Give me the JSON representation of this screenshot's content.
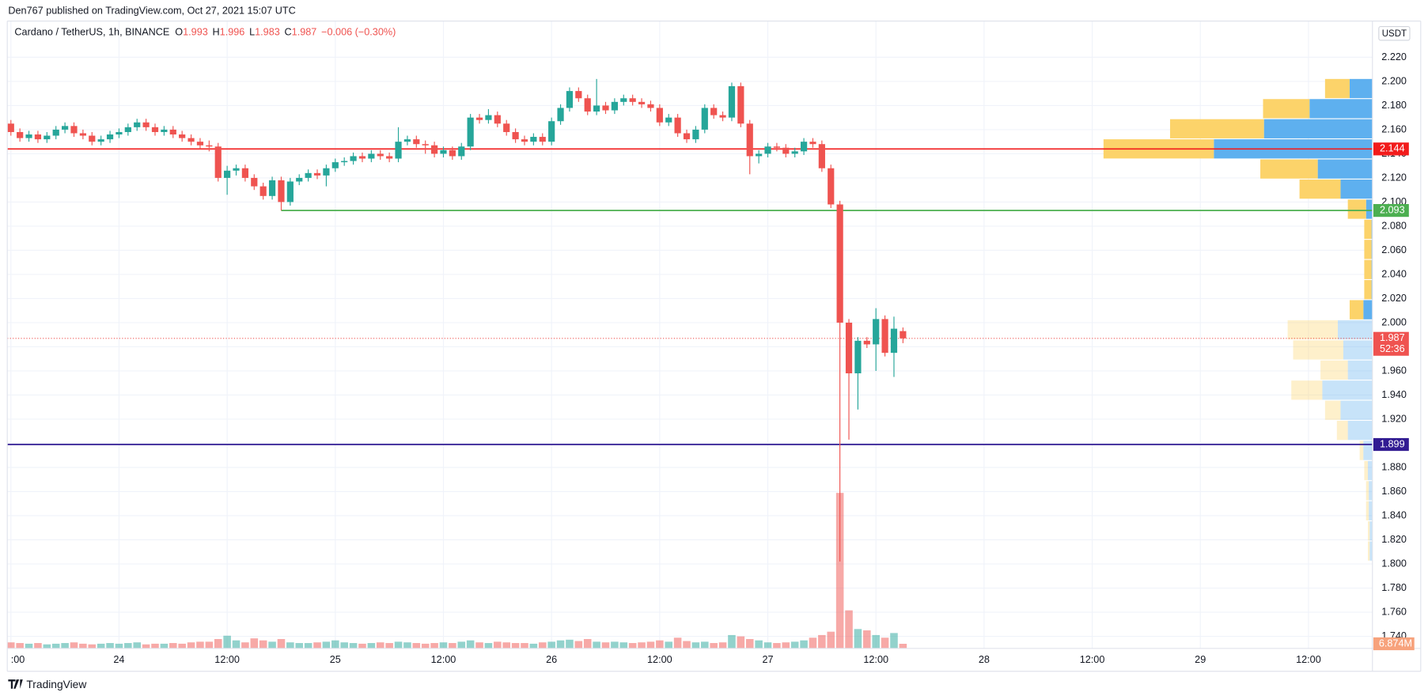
{
  "header": "Den767 published on TradingView.com, Oct 27, 2021 15:07 UTC",
  "footer": "TradingView",
  "chart_data": {
    "type": "candlestick",
    "legend": {
      "symbol": "Cardano / TetherUS, 1h, BINANCE",
      "labels": [
        "O",
        "H",
        "L",
        "C"
      ],
      "change": "−0.006 (−0.30%)"
    },
    "currency": "USDT",
    "countdown": "52:36",
    "up_color": "#26a69a",
    "down_color": "#ef5350",
    "grid": true,
    "xlim": [
      -0.4,
      151.1
    ],
    "xticks": [
      {
        "value": 0,
        "label": ":00"
      },
      {
        "value": 12,
        "label": "24"
      },
      {
        "value": 24,
        "label": "12:00"
      },
      {
        "value": 36,
        "label": "25"
      },
      {
        "value": 48,
        "label": "12:00"
      },
      {
        "value": 60,
        "label": "26"
      },
      {
        "value": 72,
        "label": "12:00"
      },
      {
        "value": 84,
        "label": "27"
      },
      {
        "value": 96,
        "label": "12:00"
      },
      {
        "value": 108,
        "label": "28"
      },
      {
        "value": 120,
        "label": "12:00"
      },
      {
        "value": 132,
        "label": "29"
      },
      {
        "value": 144,
        "label": "12:00"
      }
    ],
    "ylim": [
      1.73,
      2.25
    ],
    "yticks": [
      {
        "value": 1.74,
        "label": "1.740"
      },
      {
        "value": 1.76,
        "label": "1.760"
      },
      {
        "value": 1.78,
        "label": "1.780"
      },
      {
        "value": 1.8,
        "label": "1.800"
      },
      {
        "value": 1.82,
        "label": "1.820"
      },
      {
        "value": 1.84,
        "label": "1.840"
      },
      {
        "value": 1.86,
        "label": "1.860"
      },
      {
        "value": 1.88,
        "label": "1.880"
      },
      {
        "value": 1.9,
        "label": "1.900"
      },
      {
        "value": 1.92,
        "label": "1.920"
      },
      {
        "value": 1.94,
        "label": "1.940"
      },
      {
        "value": 1.96,
        "label": "1.960"
      },
      {
        "value": 1.98,
        "label": "1.980"
      },
      {
        "value": 2.0,
        "label": "2.000"
      },
      {
        "value": 2.02,
        "label": "2.020"
      },
      {
        "value": 2.04,
        "label": "2.040"
      },
      {
        "value": 2.06,
        "label": "2.060"
      },
      {
        "value": 2.08,
        "label": "2.080"
      },
      {
        "value": 2.1,
        "label": "2.100"
      },
      {
        "value": 2.12,
        "label": "2.120"
      },
      {
        "value": 2.14,
        "label": "2.140"
      },
      {
        "value": 2.16,
        "label": "2.160"
      },
      {
        "value": 2.18,
        "label": "2.180"
      },
      {
        "value": 2.2,
        "label": "2.200"
      },
      {
        "value": 2.22,
        "label": "2.220"
      }
    ],
    "open": [
      2.165,
      2.158,
      2.153,
      2.156,
      2.152,
      2.155,
      2.16,
      2.163,
      2.157,
      2.155,
      2.15,
      2.152,
      2.156,
      2.158,
      2.162,
      2.166,
      2.162,
      2.158,
      2.16,
      2.156,
      2.153,
      2.15,
      2.147,
      2.146,
      2.12,
      2.126,
      2.128,
      2.12,
      2.113,
      2.105,
      2.118,
      2.1,
      2.117,
      2.12,
      2.124,
      2.122,
      2.128,
      2.133,
      2.134,
      2.138,
      2.136,
      2.14,
      2.138,
      2.136,
      2.15,
      2.152,
      2.148,
      2.147,
      2.14,
      2.143,
      2.138,
      2.146,
      2.17,
      2.168,
      2.172,
      2.165,
      2.158,
      2.152,
      2.15,
      2.154,
      2.15,
      2.167,
      2.178,
      2.192,
      2.186,
      2.175,
      2.18,
      2.176,
      2.183,
      2.186,
      2.183,
      2.181,
      2.178,
      2.166,
      2.17,
      2.157,
      2.152,
      2.16,
      2.178,
      2.172,
      2.17,
      2.196,
      2.165,
      2.138,
      2.14,
      2.146,
      2.145,
      2.14,
      2.142,
      2.15,
      2.148,
      2.128,
      2.098,
      2.0,
      1.958,
      1.985,
      1.982,
      2.003,
      1.975,
      1.993
    ],
    "high": [
      2.168,
      2.161,
      2.159,
      2.159,
      2.158,
      2.163,
      2.166,
      2.166,
      2.16,
      2.158,
      2.155,
      2.159,
      2.161,
      2.165,
      2.169,
      2.169,
      2.165,
      2.163,
      2.163,
      2.159,
      2.156,
      2.153,
      2.151,
      2.149,
      2.13,
      2.131,
      2.131,
      2.123,
      2.116,
      2.121,
      2.121,
      2.12,
      2.123,
      2.127,
      2.127,
      2.131,
      2.136,
      2.137,
      2.141,
      2.141,
      2.143,
      2.143,
      2.141,
      2.162,
      2.155,
      2.155,
      2.151,
      2.15,
      2.146,
      2.146,
      2.149,
      2.173,
      2.173,
      2.177,
      2.175,
      2.168,
      2.161,
      2.155,
      2.157,
      2.157,
      2.17,
      2.181,
      2.195,
      2.195,
      2.189,
      2.202,
      2.183,
      2.186,
      2.189,
      2.189,
      2.186,
      2.184,
      2.181,
      2.173,
      2.173,
      2.16,
      2.163,
      2.181,
      2.181,
      2.175,
      2.199,
      2.199,
      2.168,
      2.143,
      2.149,
      2.149,
      2.148,
      2.145,
      2.153,
      2.153,
      2.151,
      2.131,
      2.101,
      2.003,
      1.988,
      1.988,
      2.012,
      2.006,
      2.005,
      1.996
    ],
    "low": [
      2.155,
      2.15,
      2.15,
      2.149,
      2.149,
      2.152,
      2.157,
      2.154,
      2.152,
      2.147,
      2.147,
      2.149,
      2.153,
      2.155,
      2.159,
      2.159,
      2.155,
      2.155,
      2.153,
      2.15,
      2.147,
      2.144,
      2.142,
      2.117,
      2.106,
      2.122,
      2.117,
      2.11,
      2.102,
      2.102,
      2.093,
      2.097,
      2.114,
      2.117,
      2.119,
      2.113,
      2.125,
      2.13,
      2.131,
      2.133,
      2.133,
      2.135,
      2.133,
      2.133,
      2.147,
      2.145,
      2.14,
      2.137,
      2.137,
      2.135,
      2.135,
      2.143,
      2.165,
      2.165,
      2.162,
      2.155,
      2.149,
      2.147,
      2.147,
      2.147,
      2.147,
      2.164,
      2.175,
      2.183,
      2.172,
      2.172,
      2.173,
      2.173,
      2.18,
      2.18,
      2.178,
      2.175,
      2.163,
      2.163,
      2.154,
      2.149,
      2.149,
      2.157,
      2.169,
      2.167,
      2.167,
      2.162,
      2.123,
      2.132,
      2.137,
      2.142,
      2.137,
      2.137,
      2.139,
      2.145,
      2.125,
      2.095,
      1.802,
      1.903,
      1.928,
      1.979,
      1.96,
      1.972,
      1.955,
      1.983
    ],
    "close": [
      2.158,
      2.153,
      2.156,
      2.152,
      2.155,
      2.16,
      2.163,
      2.157,
      2.155,
      2.15,
      2.152,
      2.156,
      2.158,
      2.162,
      2.166,
      2.162,
      2.158,
      2.16,
      2.156,
      2.153,
      2.15,
      2.147,
      2.146,
      2.12,
      2.126,
      2.128,
      2.12,
      2.113,
      2.105,
      2.118,
      2.1,
      2.117,
      2.12,
      2.124,
      2.122,
      2.128,
      2.133,
      2.134,
      2.138,
      2.136,
      2.14,
      2.138,
      2.136,
      2.15,
      2.152,
      2.148,
      2.147,
      2.14,
      2.143,
      2.138,
      2.146,
      2.17,
      2.168,
      2.172,
      2.165,
      2.158,
      2.152,
      2.15,
      2.154,
      2.15,
      2.167,
      2.178,
      2.192,
      2.186,
      2.175,
      2.18,
      2.176,
      2.183,
      2.186,
      2.183,
      2.181,
      2.178,
      2.166,
      2.17,
      2.157,
      2.152,
      2.16,
      2.178,
      2.172,
      2.17,
      2.196,
      2.165,
      2.138,
      2.14,
      2.146,
      2.145,
      2.14,
      2.142,
      2.15,
      2.148,
      2.128,
      2.098,
      2.0,
      1.958,
      1.985,
      1.982,
      2.003,
      1.975,
      1.995,
      1.987
    ],
    "volume": {
      "ylim": [
        0,
        940
      ],
      "last_label": "6.874M",
      "values": [
        9,
        8,
        7,
        8,
        6,
        7,
        8,
        9,
        7,
        6,
        7,
        8,
        7,
        8,
        9,
        6,
        7,
        7,
        8,
        7,
        9,
        10,
        10,
        14,
        19,
        12,
        9,
        15,
        12,
        10,
        14,
        9,
        8,
        8,
        9,
        10,
        12,
        9,
        8,
        7,
        8,
        9,
        8,
        10,
        9,
        8,
        7,
        8,
        9,
        8,
        10,
        12,
        9,
        8,
        10,
        9,
        8,
        8,
        7,
        9,
        10,
        12,
        13,
        11,
        14,
        10,
        9,
        10,
        9,
        8,
        9,
        10,
        12,
        10,
        16,
        11,
        9,
        10,
        8,
        9,
        20,
        18,
        14,
        12,
        9,
        8,
        9,
        10,
        12,
        16,
        20,
        25,
        233,
        57,
        29,
        27,
        20,
        16,
        23,
        6.874
      ]
    },
    "profile": {
      "low": 1.802,
      "high": 2.202,
      "value_area": [
        2.002,
        2.202
      ],
      "up_color": "#5eb0ef",
      "down_color": "#fcd36a",
      "up": [
        50,
        138,
        238,
        348,
        120,
        70,
        14,
        2,
        2,
        2,
        2,
        20,
        76,
        64,
        54,
        110,
        70,
        54,
        20,
        10,
        8,
        8,
        6,
        6
      ],
      "down": [
        54,
        102,
        206,
        242,
        126,
        90,
        40,
        16,
        16,
        16,
        16,
        30,
        110,
        110,
        60,
        68,
        34,
        24,
        8,
        8,
        6,
        6,
        4,
        4
      ]
    },
    "hlines": [
      {
        "value": 2.144,
        "color": "#f21b1b"
      },
      {
        "value": 2.093,
        "color": "#4caf50",
        "start": 30
      },
      {
        "value": 1.899,
        "color": "#311b92"
      }
    ]
  }
}
